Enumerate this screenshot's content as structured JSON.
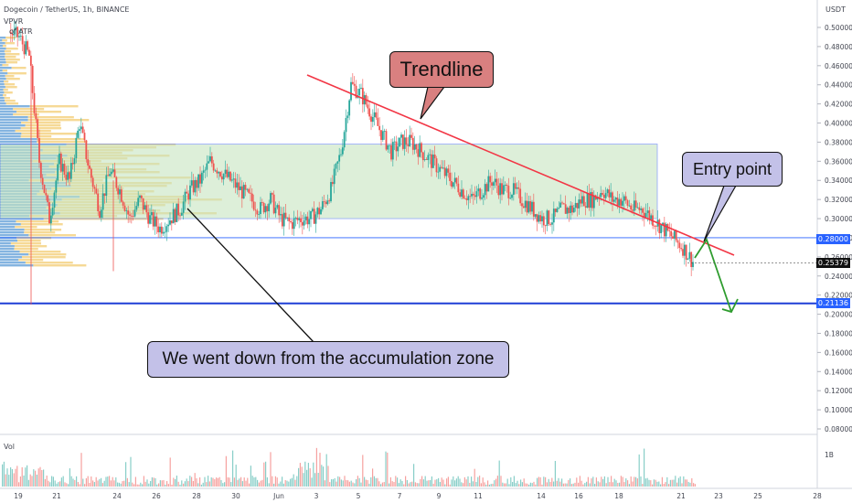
{
  "header": {
    "symbol_line": "Dogecoin / TetherUS, 1h, BINANCE",
    "indicator_1": "VPVR",
    "indicator_2": "of ATR"
  },
  "currency_label": "USDT",
  "volume_label": "Vol",
  "annotations": {
    "trendline": "Trendline",
    "entry_point": "Entry point",
    "accumulation": "We went down from the accumulation zone"
  },
  "price_tags": {
    "level_high": "0.28000",
    "current": "0.25379",
    "level_low": "0.21136"
  },
  "colors": {
    "trendline": "#f23645",
    "zone_fill": "#c8e6c0",
    "level_line": "#2962ff",
    "arrow": "#2e9c2e",
    "callout_trend": "#d98080",
    "callout_entry": "#c3c1e8",
    "callout_accum": "#c3c1e8",
    "up_candle": "#26a69a",
    "down_candle": "#ef5350"
  },
  "chart_data": {
    "type": "candlestick",
    "y_axis": {
      "ticks": [
        "0.50000",
        "0.48000",
        "0.46000",
        "0.44000",
        "0.42000",
        "0.40000",
        "0.38000",
        "0.36000",
        "0.34000",
        "0.32000",
        "0.30000",
        "0.28000",
        "0.26000",
        "0.24000",
        "0.22000",
        "0.20000",
        "0.18000",
        "0.16000",
        "0.14000",
        "0.12000",
        "0.10000",
        "0.08000"
      ],
      "range": [
        0.075,
        0.515
      ]
    },
    "x_axis": {
      "ticks": [
        "19",
        "21",
        "24",
        "26",
        "28",
        "30",
        "Jun",
        "3",
        "5",
        "7",
        "9",
        "11",
        "14",
        "16",
        "18",
        "21",
        "23",
        "25",
        "28"
      ]
    },
    "price_path": [
      [
        0,
        0.495
      ],
      [
        4,
        0.49
      ],
      [
        8,
        0.47
      ],
      [
        12,
        0.36
      ],
      [
        16,
        0.3
      ],
      [
        20,
        0.36
      ],
      [
        24,
        0.34
      ],
      [
        28,
        0.4
      ],
      [
        32,
        0.35
      ],
      [
        36,
        0.31
      ],
      [
        40,
        0.35
      ],
      [
        44,
        0.33
      ],
      [
        48,
        0.3
      ],
      [
        52,
        0.32
      ],
      [
        56,
        0.3
      ],
      [
        60,
        0.29
      ],
      [
        64,
        0.3
      ],
      [
        68,
        0.31
      ],
      [
        72,
        0.33
      ],
      [
        76,
        0.34
      ],
      [
        80,
        0.36
      ],
      [
        84,
        0.35
      ],
      [
        88,
        0.34
      ],
      [
        92,
        0.33
      ],
      [
        96,
        0.32
      ],
      [
        100,
        0.31
      ],
      [
        104,
        0.32
      ],
      [
        108,
        0.3
      ],
      [
        112,
        0.295
      ],
      [
        116,
        0.3
      ],
      [
        120,
        0.3
      ],
      [
        124,
        0.31
      ],
      [
        128,
        0.33
      ],
      [
        132,
        0.37
      ],
      [
        136,
        0.44
      ],
      [
        140,
        0.43
      ],
      [
        144,
        0.41
      ],
      [
        148,
        0.39
      ],
      [
        152,
        0.37
      ],
      [
        156,
        0.38
      ],
      [
        160,
        0.38
      ],
      [
        164,
        0.37
      ],
      [
        168,
        0.36
      ],
      [
        172,
        0.35
      ],
      [
        176,
        0.34
      ],
      [
        180,
        0.33
      ],
      [
        184,
        0.32
      ],
      [
        188,
        0.33
      ],
      [
        192,
        0.34
      ],
      [
        196,
        0.33
      ],
      [
        200,
        0.33
      ],
      [
        204,
        0.32
      ],
      [
        208,
        0.31
      ],
      [
        212,
        0.3
      ],
      [
        216,
        0.3
      ],
      [
        220,
        0.31
      ],
      [
        224,
        0.31
      ],
      [
        228,
        0.32
      ],
      [
        232,
        0.32
      ],
      [
        236,
        0.33
      ],
      [
        240,
        0.32
      ],
      [
        244,
        0.32
      ],
      [
        248,
        0.31
      ],
      [
        252,
        0.31
      ],
      [
        256,
        0.3
      ],
      [
        260,
        0.29
      ],
      [
        264,
        0.28
      ],
      [
        268,
        0.27
      ],
      [
        272,
        0.255
      ]
    ],
    "levels": [
      0.28,
      0.21136
    ],
    "zone": [
      0.3,
      0.378
    ],
    "current_price": 0.25379
  }
}
